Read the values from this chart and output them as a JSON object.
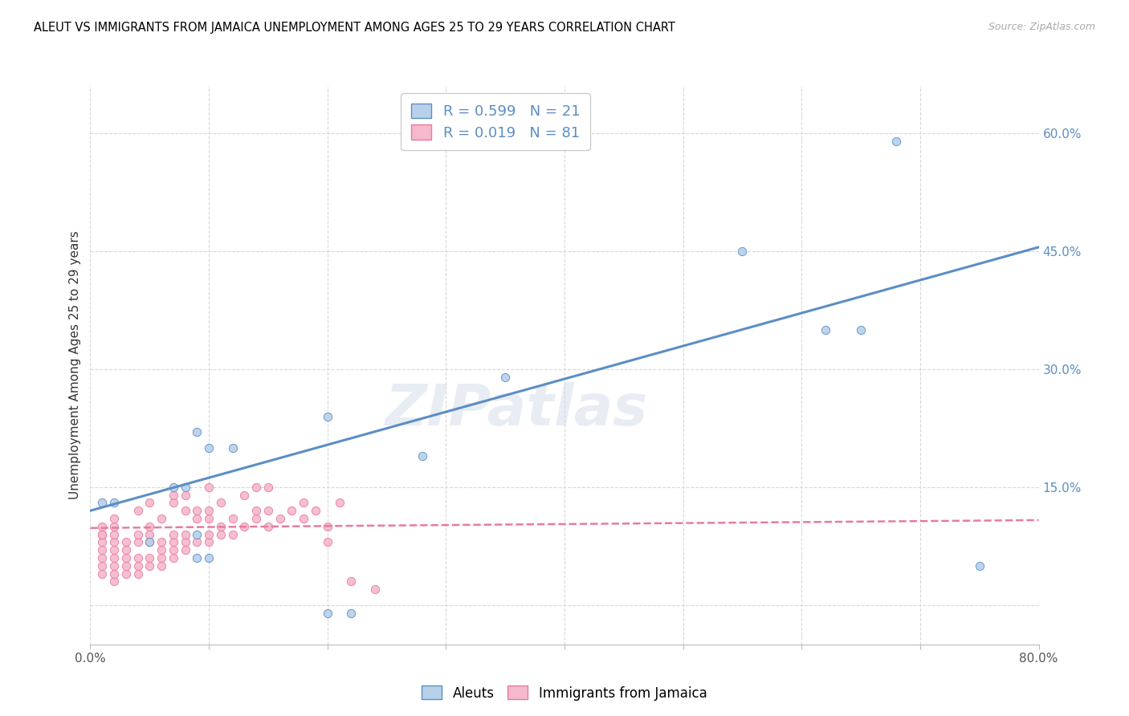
{
  "title": "ALEUT VS IMMIGRANTS FROM JAMAICA UNEMPLOYMENT AMONG AGES 25 TO 29 YEARS CORRELATION CHART",
  "source": "Source: ZipAtlas.com",
  "ylabel": "Unemployment Among Ages 25 to 29 years",
  "xlim": [
    0.0,
    0.8
  ],
  "ylim": [
    -0.05,
    0.66
  ],
  "xticks": [
    0.0,
    0.1,
    0.2,
    0.3,
    0.4,
    0.5,
    0.6,
    0.7,
    0.8
  ],
  "xtick_labels": [
    "0.0%",
    "",
    "",
    "",
    "",
    "",
    "",
    "",
    "80.0%"
  ],
  "ytick_labels_right": [
    "",
    "15.0%",
    "30.0%",
    "45.0%",
    "60.0%"
  ],
  "yticks_right": [
    0.0,
    0.15,
    0.3,
    0.45,
    0.6
  ],
  "aleut_color": "#5b8ec4",
  "aleut_fill": "#b8d0ea",
  "jamaica_color": "#e87aa0",
  "jamaica_fill": "#f5b8cc",
  "aleut_R": "0.599",
  "aleut_N": "21",
  "jamaica_R": "0.019",
  "jamaica_N": "81",
  "watermark": "ZIPatlas",
  "legend_labels": [
    "Aleuts",
    "Immigrants from Jamaica"
  ],
  "aleut_scatter_x": [
    0.01,
    0.02,
    0.05,
    0.07,
    0.08,
    0.09,
    0.09,
    0.09,
    0.1,
    0.1,
    0.12,
    0.2,
    0.28,
    0.35,
    0.55,
    0.62,
    0.65,
    0.68,
    0.75,
    0.2,
    0.22
  ],
  "aleut_scatter_y": [
    0.13,
    0.13,
    0.08,
    0.15,
    0.15,
    0.06,
    0.09,
    0.22,
    0.06,
    0.2,
    0.2,
    0.24,
    0.19,
    0.29,
    0.45,
    0.35,
    0.35,
    0.59,
    0.05,
    -0.01,
    -0.01
  ],
  "aleut_line_x": [
    0.0,
    0.8
  ],
  "aleut_line_y": [
    0.12,
    0.455
  ],
  "jamaica_scatter_x": [
    0.01,
    0.01,
    0.01,
    0.01,
    0.01,
    0.01,
    0.01,
    0.01,
    0.02,
    0.02,
    0.02,
    0.02,
    0.02,
    0.02,
    0.02,
    0.02,
    0.02,
    0.03,
    0.03,
    0.03,
    0.03,
    0.03,
    0.04,
    0.04,
    0.04,
    0.04,
    0.04,
    0.04,
    0.05,
    0.05,
    0.05,
    0.05,
    0.05,
    0.05,
    0.06,
    0.06,
    0.06,
    0.06,
    0.06,
    0.07,
    0.07,
    0.07,
    0.07,
    0.07,
    0.07,
    0.08,
    0.08,
    0.08,
    0.08,
    0.08,
    0.09,
    0.09,
    0.09,
    0.1,
    0.1,
    0.1,
    0.1,
    0.1,
    0.11,
    0.11,
    0.11,
    0.12,
    0.12,
    0.13,
    0.13,
    0.14,
    0.14,
    0.14,
    0.15,
    0.15,
    0.15,
    0.16,
    0.17,
    0.18,
    0.18,
    0.19,
    0.2,
    0.2,
    0.21,
    0.22,
    0.24
  ],
  "jamaica_scatter_y": [
    0.04,
    0.05,
    0.06,
    0.07,
    0.08,
    0.09,
    0.09,
    0.1,
    0.03,
    0.04,
    0.05,
    0.06,
    0.07,
    0.08,
    0.09,
    0.1,
    0.11,
    0.04,
    0.05,
    0.06,
    0.07,
    0.08,
    0.04,
    0.05,
    0.06,
    0.08,
    0.09,
    0.12,
    0.05,
    0.06,
    0.08,
    0.09,
    0.1,
    0.13,
    0.05,
    0.06,
    0.07,
    0.08,
    0.11,
    0.06,
    0.07,
    0.08,
    0.09,
    0.13,
    0.14,
    0.07,
    0.08,
    0.09,
    0.12,
    0.14,
    0.08,
    0.11,
    0.12,
    0.08,
    0.09,
    0.11,
    0.12,
    0.15,
    0.09,
    0.1,
    0.13,
    0.09,
    0.11,
    0.1,
    0.14,
    0.11,
    0.12,
    0.15,
    0.1,
    0.12,
    0.15,
    0.11,
    0.12,
    0.11,
    0.13,
    0.12,
    0.08,
    0.1,
    0.13,
    0.03,
    0.02
  ],
  "jamaica_line_x": [
    0.0,
    0.8
  ],
  "jamaica_line_y": [
    0.098,
    0.108
  ],
  "bg_color": "#ffffff",
  "grid_color": "#d8d8d8",
  "title_color": "#000000",
  "tick_color_right": "#5b8ec4",
  "scatter_size": 55
}
